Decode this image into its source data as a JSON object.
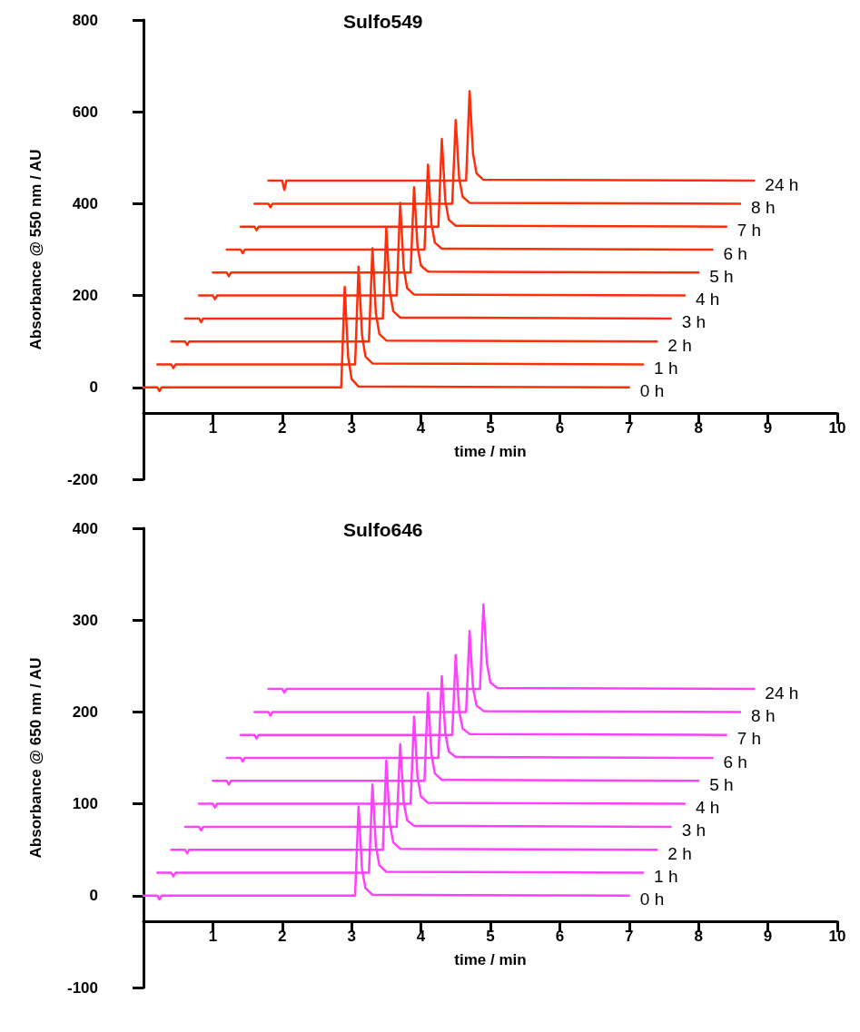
{
  "chart_data": [
    {
      "type": "line",
      "title": "Sulfo549",
      "xlabel": "time / min",
      "ylabel": "Absorbance @ 550 nm / AU",
      "xlim": [
        0,
        10
      ],
      "xticks": [
        1,
        2,
        3,
        4,
        5,
        6,
        7,
        8,
        9,
        10
      ],
      "ylim": [
        -200,
        800
      ],
      "yticks": [
        -200,
        0,
        200,
        400,
        600,
        800
      ],
      "grid": false,
      "legend": false,
      "marker": "none",
      "line_style": "solid",
      "series": [
        {
          "name": "0 h",
          "color": "#ff2d0a",
          "x": [
            0,
            0.2,
            0.23,
            0.26,
            2.85,
            2.9,
            2.95,
            3.0,
            3.1,
            7
          ],
          "values": [
            0,
            0,
            -8,
            0,
            0,
            219,
            66,
            18,
            2,
            0
          ]
        },
        {
          "name": "1 h",
          "color": "#ff2d0a",
          "x": [
            0.2,
            0.4,
            0.43,
            0.46,
            3.05,
            3.1,
            3.15,
            3.2,
            3.3,
            7.2
          ],
          "values": [
            50,
            50,
            42,
            50,
            50,
            263,
            114,
            67,
            52,
            50
          ]
        },
        {
          "name": "2 h",
          "color": "#ff2d0a",
          "x": [
            0.4,
            0.6,
            0.63,
            0.66,
            3.25,
            3.3,
            3.35,
            3.4,
            3.5,
            7.4
          ],
          "values": [
            100,
            100,
            92,
            100,
            100,
            303,
            161,
            116,
            102,
            100
          ]
        },
        {
          "name": "3 h",
          "color": "#ff2d0a",
          "x": [
            0.6,
            0.8,
            0.83,
            0.86,
            3.45,
            3.5,
            3.55,
            3.6,
            3.7,
            7.6
          ],
          "values": [
            150,
            150,
            142,
            150,
            150,
            347,
            209,
            166,
            152,
            150
          ]
        },
        {
          "name": "4 h",
          "color": "#ff2d0a",
          "x": [
            0.8,
            1.0,
            1.03,
            1.06,
            3.65,
            3.7,
            3.75,
            3.8,
            3.9,
            7.8
          ],
          "values": [
            200,
            200,
            192,
            200,
            200,
            402,
            261,
            216,
            202,
            200
          ]
        },
        {
          "name": "5 h",
          "color": "#ff2d0a",
          "x": [
            1.0,
            1.2,
            1.23,
            1.26,
            3.85,
            3.9,
            3.95,
            4.0,
            4.1,
            8.0
          ],
          "values": [
            250,
            250,
            242,
            250,
            250,
            436,
            306,
            265,
            252,
            250
          ]
        },
        {
          "name": "6 h",
          "color": "#ff2d0a",
          "x": [
            1.2,
            1.4,
            1.43,
            1.46,
            4.05,
            4.1,
            4.15,
            4.2,
            4.3,
            8.2
          ],
          "values": [
            300,
            300,
            292,
            300,
            300,
            485,
            356,
            315,
            302,
            300
          ]
        },
        {
          "name": "7 h",
          "color": "#ff2d0a",
          "x": [
            1.4,
            1.6,
            1.63,
            1.66,
            4.25,
            4.3,
            4.35,
            4.4,
            4.5,
            8.4
          ],
          "values": [
            350,
            350,
            342,
            350,
            350,
            541,
            407,
            365,
            352,
            350
          ]
        },
        {
          "name": "8 h",
          "color": "#ff2d0a",
          "x": [
            1.6,
            1.8,
            1.83,
            1.86,
            4.45,
            4.5,
            4.55,
            4.6,
            4.7,
            8.6
          ],
          "values": [
            400,
            400,
            392,
            400,
            400,
            582,
            455,
            415,
            402,
            400
          ]
        },
        {
          "name": "24 h",
          "color": "#ff2d0a",
          "x": [
            1.8,
            2.0,
            2.03,
            2.06,
            4.65,
            4.7,
            4.75,
            4.8,
            4.9,
            8.8
          ],
          "values": [
            450,
            450,
            430,
            450,
            450,
            645,
            509,
            466,
            452,
            450
          ]
        }
      ]
    },
    {
      "type": "line",
      "title": "Sulfo646",
      "xlabel": "time / min",
      "ylabel": "Absorbance @ 650 nm / AU",
      "xlim": [
        0,
        10
      ],
      "xticks": [
        1,
        2,
        3,
        4,
        5,
        6,
        7,
        8,
        9,
        10
      ],
      "ylim": [
        -100,
        400
      ],
      "yticks": [
        -100,
        0,
        100,
        200,
        300,
        400
      ],
      "grid": false,
      "legend": false,
      "marker": "none",
      "line_style": "solid",
      "series": [
        {
          "name": "0 h",
          "color": "#ff40ff",
          "x": [
            0,
            0.2,
            0.23,
            0.26,
            3.05,
            3.1,
            3.15,
            3.2,
            3.3,
            7
          ],
          "values": [
            0,
            0,
            -4,
            0,
            0,
            97,
            29,
            8,
            1,
            0
          ]
        },
        {
          "name": "1 h",
          "color": "#ff40ff",
          "x": [
            0.2,
            0.4,
            0.43,
            0.46,
            3.25,
            3.3,
            3.35,
            3.4,
            3.5,
            7.2
          ],
          "values": [
            25,
            25,
            21,
            25,
            25,
            121,
            54,
            33,
            26,
            25
          ]
        },
        {
          "name": "2 h",
          "color": "#ff40ff",
          "x": [
            0.4,
            0.6,
            0.63,
            0.66,
            3.45,
            3.5,
            3.55,
            3.6,
            3.7,
            7.4
          ],
          "values": [
            50,
            50,
            46,
            50,
            50,
            147,
            79,
            58,
            51,
            50
          ]
        },
        {
          "name": "3 h",
          "color": "#ff40ff",
          "x": [
            0.6,
            0.8,
            0.83,
            0.86,
            3.65,
            3.7,
            3.75,
            3.8,
            3.9,
            7.6
          ],
          "values": [
            75,
            75,
            71,
            75,
            75,
            165,
            102,
            82,
            76,
            75
          ]
        },
        {
          "name": "4 h",
          "color": "#ff40ff",
          "x": [
            0.8,
            1.0,
            1.03,
            1.06,
            3.85,
            3.9,
            3.95,
            4.0,
            4.1,
            7.8
          ],
          "values": [
            100,
            100,
            96,
            100,
            100,
            195,
            129,
            108,
            101,
            100
          ]
        },
        {
          "name": "5 h",
          "color": "#ff40ff",
          "x": [
            1.0,
            1.2,
            1.23,
            1.26,
            4.05,
            4.1,
            4.15,
            4.2,
            4.3,
            8.0
          ],
          "values": [
            125,
            125,
            121,
            125,
            125,
            221,
            154,
            133,
            126,
            125
          ]
        },
        {
          "name": "6 h",
          "color": "#ff40ff",
          "x": [
            1.2,
            1.4,
            1.43,
            1.46,
            4.25,
            4.3,
            4.35,
            4.4,
            4.5,
            8.2
          ],
          "values": [
            150,
            150,
            146,
            150,
            150,
            239,
            177,
            157,
            151,
            150
          ]
        },
        {
          "name": "7 h",
          "color": "#ff40ff",
          "x": [
            1.4,
            1.6,
            1.63,
            1.66,
            4.45,
            4.5,
            4.55,
            4.6,
            4.7,
            8.4
          ],
          "values": [
            175,
            175,
            171,
            175,
            175,
            262,
            201,
            182,
            176,
            175
          ]
        },
        {
          "name": "8 h",
          "color": "#ff40ff",
          "x": [
            1.6,
            1.8,
            1.83,
            1.86,
            4.65,
            4.7,
            4.75,
            4.8,
            4.9,
            8.6
          ],
          "values": [
            200,
            200,
            196,
            200,
            200,
            288,
            226,
            207,
            201,
            200
          ]
        },
        {
          "name": "24 h",
          "color": "#ff40ff",
          "x": [
            1.8,
            2.0,
            2.03,
            2.06,
            4.85,
            4.9,
            4.95,
            5.0,
            5.1,
            8.8
          ],
          "values": [
            225,
            225,
            221,
            225,
            225,
            317,
            253,
            232,
            226,
            225
          ]
        }
      ]
    }
  ]
}
